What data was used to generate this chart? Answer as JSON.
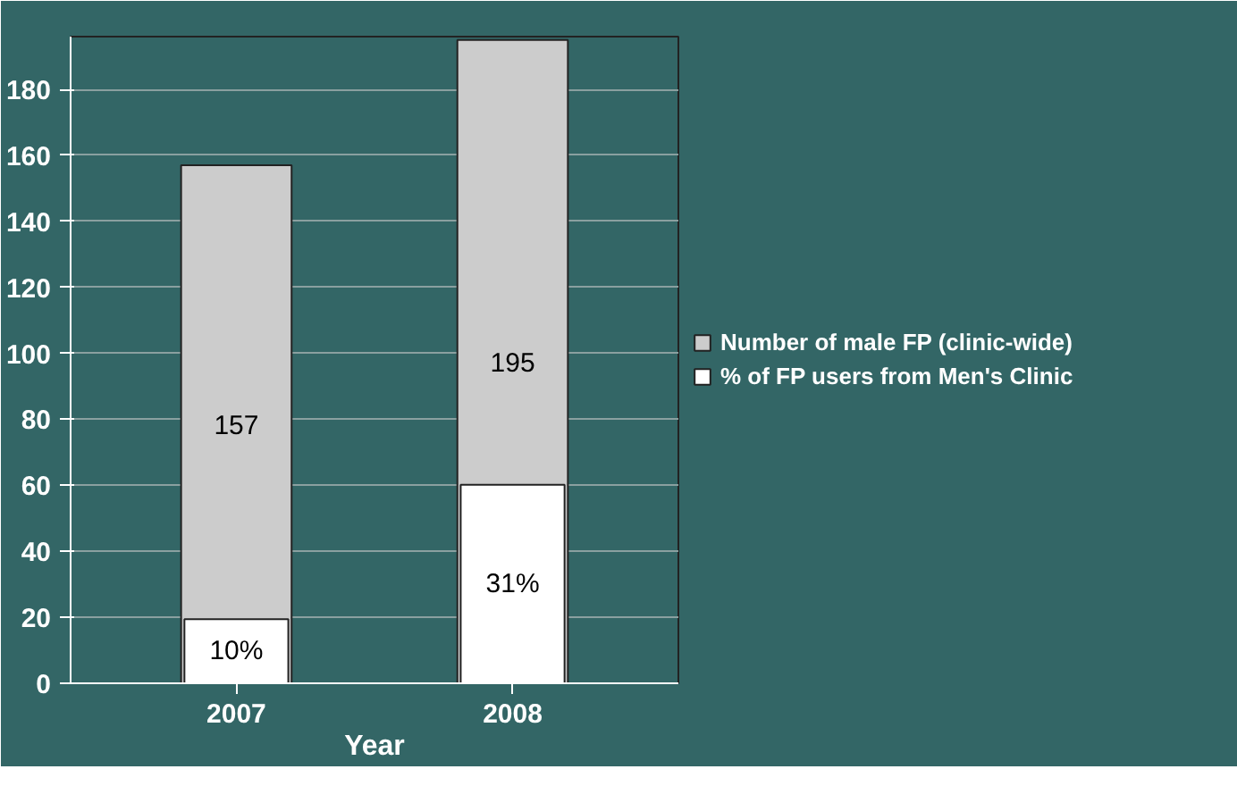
{
  "chart_data": {
    "type": "bar",
    "xlabel": "Year",
    "categories": [
      "2007",
      "2008"
    ],
    "series": [
      {
        "name": "Number of male FP (clinic-wide)",
        "color": "#cccccc",
        "values": [
          157,
          195
        ],
        "value_labels": [
          "157",
          "195"
        ]
      },
      {
        "name": "% of FP users from Men's Clinic",
        "color": "#ffffff",
        "values": [
          10,
          31
        ],
        "value_labels": [
          "10%",
          "31%"
        ],
        "axis": "y2"
      }
    ],
    "ylim": [
      0,
      196
    ],
    "yticks": [
      0,
      20,
      40,
      60,
      80,
      100,
      120,
      140,
      160,
      180
    ],
    "y2lim": [
      0,
      101
    ],
    "grid": "y",
    "legend": "right"
  }
}
